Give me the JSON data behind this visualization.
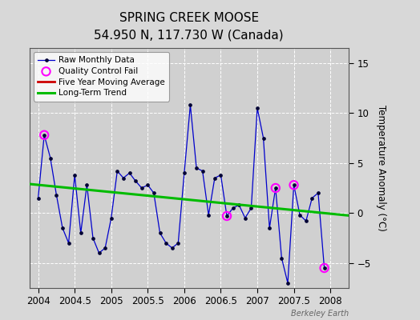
{
  "title": "SPRING CREEK MOOSE",
  "subtitle": "54.950 N, 117.730 W (Canada)",
  "ylabel_right": "Temperature Anomaly (°C)",
  "watermark": "Berkeley Earth",
  "xlim": [
    2003.88,
    2008.25
  ],
  "ylim": [
    -7.5,
    16.5
  ],
  "yticks": [
    -5,
    0,
    5,
    10,
    15
  ],
  "xticks": [
    2004,
    2004.5,
    2005,
    2005.5,
    2006,
    2006.5,
    2007,
    2007.5,
    2008
  ],
  "background_color": "#d8d8d8",
  "plot_bg_color": "#d0d0d0",
  "raw_x": [
    2004.0,
    2004.083,
    2004.167,
    2004.25,
    2004.333,
    2004.417,
    2004.5,
    2004.583,
    2004.667,
    2004.75,
    2004.833,
    2004.917,
    2005.0,
    2005.083,
    2005.167,
    2005.25,
    2005.333,
    2005.417,
    2005.5,
    2005.583,
    2005.667,
    2005.75,
    2005.833,
    2005.917,
    2006.0,
    2006.083,
    2006.167,
    2006.25,
    2006.333,
    2006.417,
    2006.5,
    2006.583,
    2006.667,
    2006.75,
    2006.833,
    2006.917,
    2007.0,
    2007.083,
    2007.167,
    2007.25,
    2007.333,
    2007.417,
    2007.5,
    2007.583,
    2007.667,
    2007.75,
    2007.833,
    2007.917
  ],
  "raw_y": [
    1.5,
    7.8,
    5.5,
    1.8,
    -1.5,
    -3.0,
    3.8,
    -2.0,
    2.8,
    -2.5,
    -4.0,
    -3.5,
    -0.5,
    4.2,
    3.5,
    4.0,
    3.2,
    2.5,
    2.8,
    2.0,
    -2.0,
    -3.0,
    -3.5,
    -3.0,
    4.0,
    10.8,
    4.5,
    4.2,
    -0.2,
    3.5,
    3.8,
    -0.3,
    0.5,
    0.8,
    -0.5,
    0.5,
    10.5,
    7.5,
    -1.5,
    2.5,
    -4.5,
    -7.0,
    2.8,
    -0.2,
    -0.8,
    1.5,
    2.0,
    -5.5
  ],
  "qc_fail_x": [
    2004.083,
    2006.583,
    2007.25,
    2007.5,
    2007.917
  ],
  "qc_fail_y": [
    7.8,
    -0.3,
    2.5,
    2.8,
    -5.5
  ],
  "trend_x": [
    2003.88,
    2008.25
  ],
  "trend_y": [
    2.9,
    -0.25
  ],
  "line_color": "#0000cc",
  "marker_color": "#000033",
  "qc_color": "#ff00ff",
  "trend_color": "#00bb00",
  "moving_avg_color": "#cc0000",
  "grid_color": "#ffffff"
}
